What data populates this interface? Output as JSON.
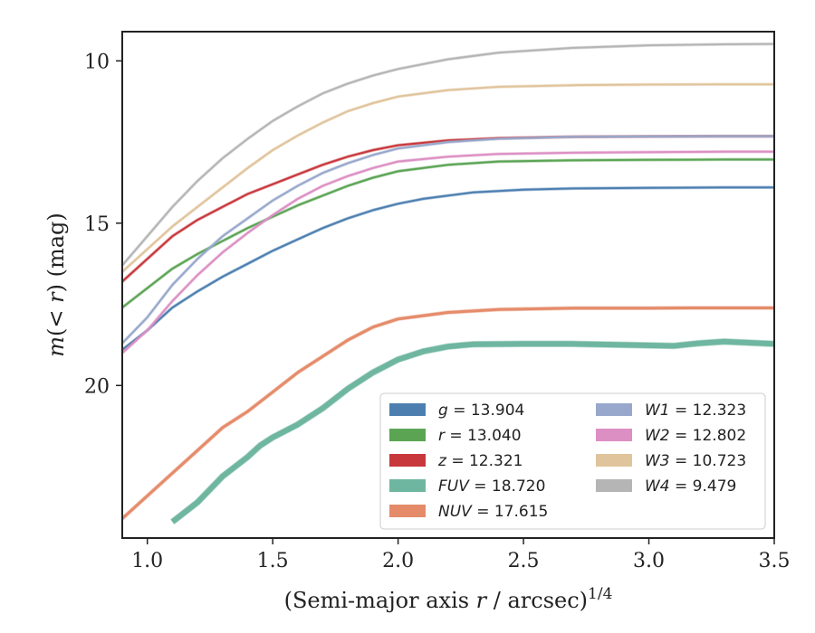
{
  "chart_data": {
    "type": "line",
    "xlabel": "(Semi-major axis r / arcsec)",
    "xlabel_superscript": "1/4",
    "ylabel": "m(< r) (mag)",
    "xlim": [
      0.9,
      3.5
    ],
    "ylim": [
      24.7,
      9.1
    ],
    "y_inverted": true,
    "xticks": [
      1.0,
      1.5,
      2.0,
      2.5,
      3.0,
      3.5
    ],
    "yticks": [
      10,
      15,
      20
    ],
    "grid": false,
    "legend_position": "lower-right",
    "series": [
      {
        "id": "g",
        "label": "g",
        "value": "13.904",
        "color": "#4c7fb0",
        "x": [
          0.9,
          1.0,
          1.1,
          1.2,
          1.3,
          1.4,
          1.5,
          1.6,
          1.7,
          1.8,
          1.9,
          2.0,
          2.1,
          2.2,
          2.3,
          2.5,
          2.7,
          3.0,
          3.3,
          3.5
        ],
        "y": [
          18.9,
          18.3,
          17.6,
          17.1,
          16.65,
          16.25,
          15.85,
          15.5,
          15.15,
          14.85,
          14.6,
          14.4,
          14.25,
          14.15,
          14.05,
          13.97,
          13.93,
          13.91,
          13.9,
          13.9
        ],
        "band_x": [
          0.9,
          3.5
        ],
        "width": 2
      },
      {
        "id": "r",
        "label": "r",
        "value": "13.040",
        "color": "#5aa454",
        "x": [
          0.9,
          1.0,
          1.1,
          1.2,
          1.3,
          1.4,
          1.5,
          1.6,
          1.7,
          1.8,
          1.9,
          2.0,
          2.2,
          2.4,
          2.7,
          3.0,
          3.3,
          3.5
        ],
        "y": [
          17.6,
          17.0,
          16.4,
          15.95,
          15.55,
          15.15,
          14.8,
          14.45,
          14.15,
          13.85,
          13.6,
          13.4,
          13.2,
          13.1,
          13.06,
          13.05,
          13.04,
          13.04
        ],
        "width": 2
      },
      {
        "id": "z",
        "label": "z",
        "value": "12.321",
        "color": "#c8373c",
        "x": [
          0.9,
          1.0,
          1.1,
          1.2,
          1.3,
          1.4,
          1.5,
          1.6,
          1.7,
          1.8,
          1.9,
          2.0,
          2.2,
          2.4,
          2.7,
          3.0,
          3.3,
          3.5
        ],
        "y": [
          16.8,
          16.1,
          15.4,
          14.9,
          14.5,
          14.1,
          13.8,
          13.5,
          13.2,
          12.95,
          12.75,
          12.6,
          12.45,
          12.38,
          12.34,
          12.33,
          12.32,
          12.32
        ],
        "width": 2
      },
      {
        "id": "fuv",
        "label": "FUV",
        "value": "18.720",
        "color": "#6fb6a0",
        "x": [
          1.1,
          1.2,
          1.3,
          1.4,
          1.45,
          1.5,
          1.6,
          1.7,
          1.8,
          1.9,
          2.0,
          2.1,
          2.2,
          2.3,
          2.5,
          2.7,
          2.9,
          3.1,
          3.2,
          3.3,
          3.5
        ],
        "y": [
          24.2,
          23.6,
          22.8,
          22.2,
          21.85,
          21.6,
          21.2,
          20.7,
          20.1,
          19.6,
          19.2,
          18.95,
          18.8,
          18.73,
          18.72,
          18.72,
          18.75,
          18.78,
          18.7,
          18.65,
          18.72
        ],
        "width": 6
      },
      {
        "id": "nuv",
        "label": "NUV",
        "value": "17.615",
        "color": "#e58b6a",
        "x": [
          0.9,
          1.0,
          1.1,
          1.2,
          1.3,
          1.4,
          1.5,
          1.6,
          1.7,
          1.8,
          1.9,
          2.0,
          2.2,
          2.4,
          2.7,
          3.0,
          3.2,
          3.5
        ],
        "y": [
          24.1,
          23.4,
          22.7,
          22.0,
          21.3,
          20.8,
          20.2,
          19.6,
          19.1,
          18.6,
          18.2,
          17.95,
          17.75,
          17.66,
          17.62,
          17.62,
          17.61,
          17.61
        ],
        "width": 3
      },
      {
        "id": "w1",
        "label": "W1",
        "value": "12.323",
        "color": "#98a8cc",
        "x": [
          0.9,
          1.0,
          1.1,
          1.2,
          1.3,
          1.4,
          1.5,
          1.6,
          1.7,
          1.8,
          1.9,
          2.0,
          2.2,
          2.4,
          2.7,
          3.0,
          3.3,
          3.5
        ],
        "y": [
          18.7,
          17.9,
          16.9,
          16.1,
          15.4,
          14.85,
          14.3,
          13.85,
          13.45,
          13.15,
          12.9,
          12.7,
          12.5,
          12.4,
          12.34,
          12.33,
          12.32,
          12.32
        ],
        "width": 2
      },
      {
        "id": "w2",
        "label": "W2",
        "value": "12.802",
        "color": "#dc8fc3",
        "x": [
          0.9,
          1.0,
          1.1,
          1.2,
          1.3,
          1.4,
          1.5,
          1.6,
          1.7,
          1.8,
          1.9,
          2.0,
          2.2,
          2.4,
          2.7,
          3.0,
          3.3,
          3.5
        ],
        "y": [
          19.0,
          18.3,
          17.4,
          16.6,
          15.9,
          15.3,
          14.75,
          14.25,
          13.85,
          13.55,
          13.3,
          13.1,
          12.95,
          12.87,
          12.83,
          12.81,
          12.8,
          12.8
        ],
        "width": 2
      },
      {
        "id": "w3",
        "label": "W3",
        "value": "10.723",
        "color": "#e0c49b",
        "x": [
          0.9,
          1.0,
          1.1,
          1.2,
          1.3,
          1.4,
          1.5,
          1.6,
          1.7,
          1.8,
          1.9,
          2.0,
          2.2,
          2.4,
          2.7,
          3.0,
          3.3,
          3.5
        ],
        "y": [
          16.5,
          15.8,
          15.1,
          14.5,
          13.9,
          13.3,
          12.75,
          12.3,
          11.9,
          11.55,
          11.3,
          11.1,
          10.9,
          10.8,
          10.75,
          10.73,
          10.72,
          10.72
        ],
        "width": 2
      },
      {
        "id": "w4",
        "label": "W4",
        "value": "9.479",
        "color": "#b5b5b5",
        "x": [
          0.9,
          1.0,
          1.1,
          1.2,
          1.3,
          1.4,
          1.5,
          1.6,
          1.7,
          1.8,
          1.9,
          2.0,
          2.2,
          2.4,
          2.7,
          3.0,
          3.3,
          3.5
        ],
        "y": [
          16.3,
          15.4,
          14.5,
          13.7,
          13.0,
          12.4,
          11.85,
          11.4,
          11.0,
          10.7,
          10.45,
          10.25,
          9.95,
          9.75,
          9.6,
          9.52,
          9.49,
          9.48
        ],
        "width": 2
      }
    ]
  }
}
